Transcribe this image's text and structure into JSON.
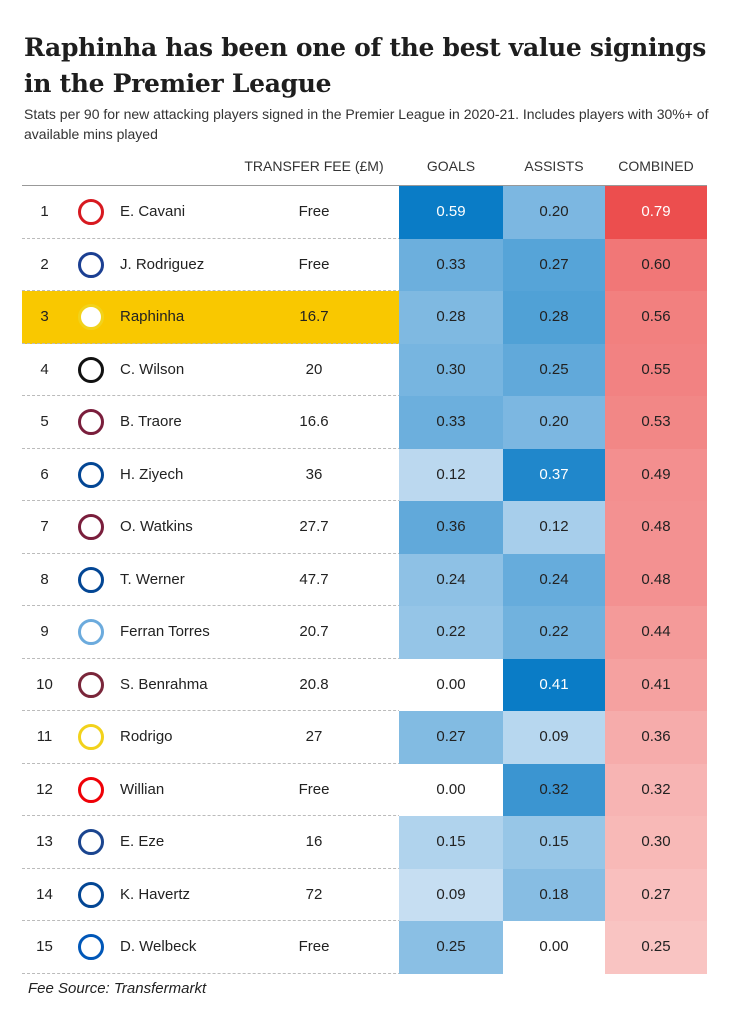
{
  "header": {
    "title": "Raphinha has been one of the best value signings in the Premier League",
    "subtitle": "Stats per 90 for new attacking players signed in the Premier League in 2020-21. Includes players with 30%+ of available mins played"
  },
  "table": {
    "columns": [
      "TRANSFER FEE (£M)",
      "GOALS",
      "ASSISTS",
      "COMBINED"
    ],
    "rows": [
      [
        "1",
        "E. Cavani",
        "Free",
        "0.59",
        "0.20",
        "0.79"
      ],
      [
        "2",
        "J. Rodriguez",
        "Free",
        "0.33",
        "0.27",
        "0.60"
      ],
      [
        "3",
        "Raphinha",
        "16.7",
        "0.28",
        "0.28",
        "0.56"
      ],
      [
        "4",
        "C. Wilson",
        "20",
        "0.30",
        "0.25",
        "0.55"
      ],
      [
        "5",
        "B. Traore",
        "16.6",
        "0.33",
        "0.20",
        "0.53"
      ],
      [
        "6",
        "H. Ziyech",
        "36",
        "0.12",
        "0.37",
        "0.49"
      ],
      [
        "7",
        "O. Watkins",
        "27.7",
        "0.36",
        "0.12",
        "0.48"
      ],
      [
        "8",
        "T. Werner",
        "47.7",
        "0.24",
        "0.24",
        "0.48"
      ],
      [
        "9",
        "Ferran Torres",
        "20.7",
        "0.22",
        "0.22",
        "0.44"
      ],
      [
        "10",
        "S. Benrahma",
        "20.8",
        "0.00",
        "0.41",
        "0.41"
      ],
      [
        "11",
        "Rodrigo",
        "27",
        "0.27",
        "0.09",
        "0.36"
      ],
      [
        "12",
        "Willian",
        "Free",
        "0.00",
        "0.32",
        "0.32"
      ],
      [
        "13",
        "E. Eze",
        "16",
        "0.15",
        "0.15",
        "0.30"
      ],
      [
        "14",
        "K. Havertz",
        "72",
        "0.09",
        "0.18",
        "0.27"
      ],
      [
        "15",
        "D. Welbeck",
        "Free",
        "0.25",
        "0.00",
        "0.25"
      ]
    ]
  },
  "footer": {
    "source": "Fee Source: Transfermarkt"
  }
}
